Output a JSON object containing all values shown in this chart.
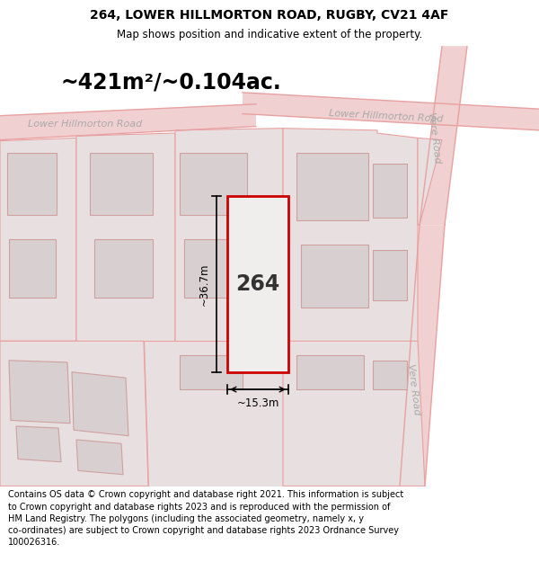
{
  "title": "264, LOWER HILLMORTON ROAD, RUGBY, CV21 4AF",
  "subtitle": "Map shows position and indicative extent of the property.",
  "area_text": "~421m²/~0.104ac.",
  "width_label": "~15.3m",
  "height_label": "~36.7m",
  "property_number": "264",
  "road_label_left": "Lower Hillmorton Road",
  "road_label_right": "Lower Hillmorton Road",
  "road_label_vere1": "Vere Road",
  "road_label_vere2": "Vere Road",
  "footer": "Contains OS data © Crown copyright and database right 2021. This information is subject\nto Crown copyright and database rights 2023 and is reproduced with the permission of\nHM Land Registry. The polygons (including the associated geometry, namely x, y\nco-ordinates) are subject to Crown copyright and database rights 2023 Ordnance Survey\n100026316.",
  "map_bg": "#f7f0f0",
  "property_fill": "#f0eded",
  "property_border": "#cc0000",
  "road_fill": "#f0d0d0",
  "road_line": "#e8a0a0",
  "plot_fill": "#e8e0e0",
  "plot_line": "#e8a0a0",
  "bld_fill": "#d8d0d0",
  "bld_line": "#d0a0a0",
  "title_fontsize": 10,
  "subtitle_fontsize": 8.5,
  "area_fontsize": 17,
  "road_label_fontsize": 8,
  "footer_fontsize": 7
}
